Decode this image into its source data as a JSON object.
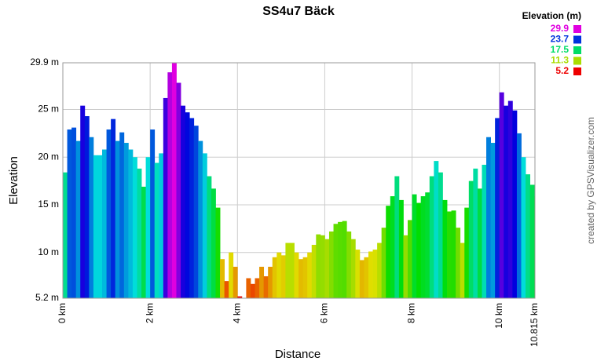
{
  "chart_data": {
    "type": "area",
    "title": "SS4u7 Bäck",
    "x_label": "Distance",
    "y_label": "Elevation",
    "credit": "created by GPSVisualizer.com",
    "legend": {
      "title": "Elevation (m)",
      "values": [
        29.9,
        23.7,
        17.5,
        11.3,
        5.2
      ],
      "colors": [
        "#e000e0",
        "#0033dd",
        "#00dd66",
        "#aadd00",
        "#ee0000"
      ]
    },
    "grid": true,
    "xlim": [
      0,
      10.815
    ],
    "ylim": [
      5.2,
      29.9
    ],
    "xticks": [
      {
        "value": 0,
        "label": "0 km"
      },
      {
        "value": 2,
        "label": "2 km"
      },
      {
        "value": 4,
        "label": "4 km"
      },
      {
        "value": 6,
        "label": "6 km"
      },
      {
        "value": 8,
        "label": "8 km"
      },
      {
        "value": 10,
        "label": "10 km"
      },
      {
        "value": 10.815,
        "label": "10.815 km"
      }
    ],
    "yticks": [
      {
        "value": 5.2,
        "label": "5.2 m"
      },
      {
        "value": 10,
        "label": "10 m"
      },
      {
        "value": 15,
        "label": "15 m"
      },
      {
        "value": 20,
        "label": "20 m"
      },
      {
        "value": 25,
        "label": "25 m"
      },
      {
        "value": 29.9,
        "label": "29.9 m"
      }
    ],
    "x": [
      0,
      0.1,
      0.2,
      0.3,
      0.4,
      0.5,
      0.6,
      0.7,
      0.8,
      0.9,
      1.0,
      1.1,
      1.2,
      1.3,
      1.4,
      1.5,
      1.6,
      1.7,
      1.8,
      1.9,
      2.0,
      2.1,
      2.2,
      2.3,
      2.4,
      2.5,
      2.6,
      2.7,
      2.8,
      2.9,
      3.0,
      3.1,
      3.2,
      3.3,
      3.4,
      3.5,
      3.6,
      3.7,
      3.8,
      3.9,
      4.0,
      4.1,
      4.2,
      4.3,
      4.4,
      4.5,
      4.6,
      4.7,
      4.8,
      4.9,
      5.0,
      5.1,
      5.2,
      5.3,
      5.4,
      5.5,
      5.6,
      5.7,
      5.8,
      5.9,
      6.0,
      6.1,
      6.2,
      6.3,
      6.4,
      6.5,
      6.6,
      6.7,
      6.8,
      6.9,
      7.0,
      7.1,
      7.2,
      7.3,
      7.4,
      7.5,
      7.6,
      7.7,
      7.8,
      7.9,
      8.0,
      8.1,
      8.2,
      8.3,
      8.4,
      8.5,
      8.6,
      8.7,
      8.8,
      8.9,
      9.0,
      9.1,
      9.2,
      9.3,
      9.4,
      9.5,
      9.6,
      9.7,
      9.8,
      9.9,
      10.0,
      10.1,
      10.2,
      10.3,
      10.4,
      10.5,
      10.6,
      10.7,
      10.8
    ],
    "values": [
      18.4,
      22.9,
      23.1,
      21.7,
      25.4,
      24.3,
      22.1,
      20.2,
      20.2,
      20.8,
      22.9,
      24.0,
      21.7,
      22.6,
      21.5,
      20.8,
      20.0,
      18.8,
      16.9,
      20.0,
      22.9,
      19.4,
      20.4,
      26.2,
      28.9,
      29.9,
      27.8,
      25.4,
      24.7,
      24.1,
      23.3,
      21.7,
      20.4,
      18.0,
      16.7,
      14.7,
      9.3,
      7.0,
      10.0,
      8.5,
      5.4,
      5.2,
      7.3,
      6.7,
      7.3,
      8.5,
      7.5,
      8.5,
      9.5,
      10.0,
      9.7,
      11.0,
      11.0,
      10.0,
      9.3,
      9.5,
      10.0,
      10.8,
      11.9,
      11.8,
      11.4,
      12.2,
      13.0,
      13.2,
      13.3,
      12.2,
      11.4,
      10.3,
      9.2,
      9.5,
      10.1,
      10.3,
      11.0,
      12.6,
      14.9,
      15.9,
      18.0,
      15.5,
      11.8,
      13.4,
      16.1,
      15.2,
      15.9,
      16.3,
      18.0,
      19.6,
      18.4,
      15.5,
      14.3,
      14.4,
      12.6,
      11.0,
      14.7,
      17.5,
      18.8,
      16.7,
      19.2,
      22.1,
      21.5,
      24.1,
      26.8,
      25.4,
      25.9,
      24.9,
      22.5,
      20.0,
      18.2,
      17.1,
      15.9
    ]
  }
}
